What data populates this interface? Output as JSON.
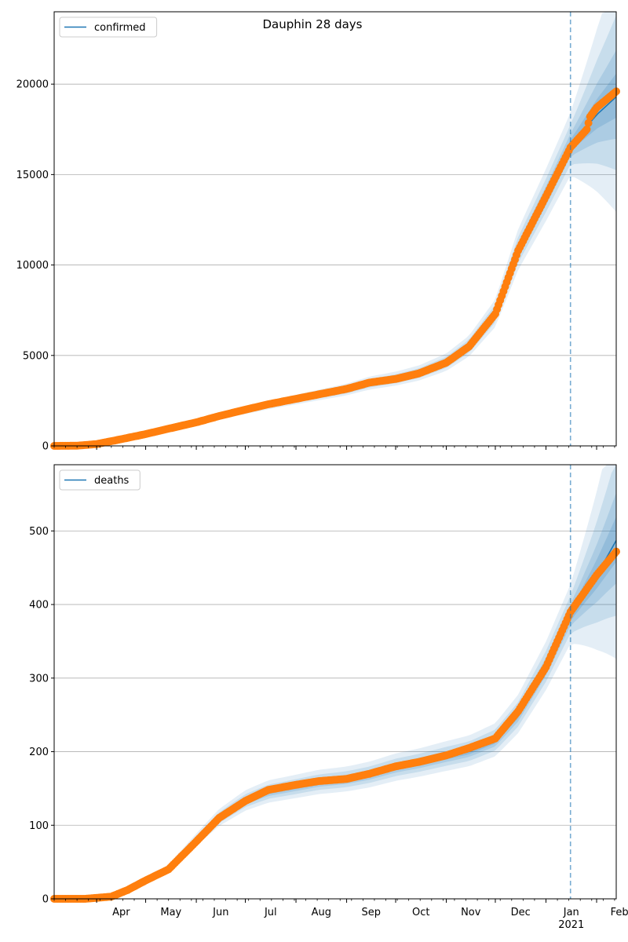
{
  "title": "Dauphin 28 days",
  "x_ticks": [
    "Apr",
    "May",
    "Jun",
    "Jul",
    "Aug",
    "Sep",
    "Oct",
    "Nov",
    "Dec",
    "Jan",
    "Feb"
  ],
  "x_year_label": "2021",
  "colors": {
    "model_line": "#1f77b4",
    "observed": "#ff7f0e",
    "band": "#1f77b4",
    "grid": "#b0b0b0",
    "forecast_line": "#1f77b4"
  },
  "chart_data": [
    {
      "type": "line",
      "legend": [
        "confirmed"
      ],
      "legend_position": "top-left",
      "grid": "horizontal",
      "xlim": [
        "2020-03-06",
        "2021-02-13"
      ],
      "ylim": [
        0,
        24000
      ],
      "y_ticks": [
        "0",
        "5000",
        "10000",
        "15000",
        "20000"
      ],
      "y_tick_values": [
        0,
        5000,
        10000,
        15000,
        20000
      ],
      "forecast_start": "2021-01-16",
      "series": [
        {
          "name": "confirmed",
          "style": "line",
          "x": [
            "2020-03-06",
            "2020-03-20",
            "2020-04-01",
            "2020-04-15",
            "2020-05-01",
            "2020-05-15",
            "2020-06-01",
            "2020-06-15",
            "2020-07-01",
            "2020-07-15",
            "2020-08-01",
            "2020-08-15",
            "2020-09-01",
            "2020-09-15",
            "2020-10-01",
            "2020-10-15",
            "2020-11-01",
            "2020-11-15",
            "2020-12-01",
            "2020-12-15",
            "2021-01-01",
            "2021-01-16",
            "2021-02-01",
            "2021-02-13"
          ],
          "y": [
            0,
            10,
            100,
            350,
            650,
            950,
            1300,
            1650,
            1950,
            2250,
            2550,
            2800,
            3100,
            3450,
            3700,
            4000,
            4600,
            5500,
            7300,
            10800,
            13800,
            16600,
            18300,
            19300
          ]
        },
        {
          "name": "observed",
          "style": "markers",
          "x": [
            "2020-03-06",
            "2020-03-20",
            "2020-04-01",
            "2020-04-15",
            "2020-05-01",
            "2020-05-15",
            "2020-06-01",
            "2020-06-15",
            "2020-07-01",
            "2020-07-15",
            "2020-08-01",
            "2020-08-15",
            "2020-09-01",
            "2020-09-15",
            "2020-10-01",
            "2020-10-15",
            "2020-11-01",
            "2020-11-15",
            "2020-12-01",
            "2020-12-15",
            "2021-01-01",
            "2021-01-16",
            "2021-01-26",
            "2021-01-28",
            "2021-02-01",
            "2021-02-13"
          ],
          "y": [
            0,
            10,
            100,
            350,
            650,
            950,
            1300,
            1650,
            2000,
            2300,
            2600,
            2850,
            3150,
            3500,
            3700,
            4000,
            4600,
            5500,
            7300,
            10800,
            13800,
            16500,
            17500,
            18200,
            18700,
            19600
          ]
        }
      ]
    },
    {
      "type": "line",
      "legend": [
        "deaths"
      ],
      "legend_position": "top-left",
      "grid": "horizontal",
      "xlim": [
        "2020-03-06",
        "2021-02-13"
      ],
      "ylim": [
        0,
        590
      ],
      "y_ticks": [
        "0",
        "100",
        "200",
        "300",
        "400",
        "500"
      ],
      "y_tick_values": [
        0,
        100,
        200,
        300,
        400,
        500
      ],
      "forecast_start": "2021-01-16",
      "series": [
        {
          "name": "deaths",
          "style": "line",
          "x": [
            "2020-03-06",
            "2020-03-25",
            "2020-04-10",
            "2020-04-20",
            "2020-05-01",
            "2020-05-15",
            "2020-06-01",
            "2020-06-15",
            "2020-07-01",
            "2020-07-15",
            "2020-08-01",
            "2020-08-15",
            "2020-09-01",
            "2020-09-15",
            "2020-10-01",
            "2020-10-15",
            "2020-11-01",
            "2020-11-15",
            "2020-12-01",
            "2020-12-15",
            "2021-01-01",
            "2021-01-16",
            "2021-02-01",
            "2021-02-13"
          ],
          "y": [
            0,
            0,
            3,
            10,
            25,
            42,
            80,
            110,
            133,
            145,
            152,
            158,
            162,
            168,
            178,
            184,
            193,
            200,
            215,
            250,
            315,
            385,
            440,
            487
          ]
        },
        {
          "name": "observed",
          "style": "markers",
          "x": [
            "2020-03-06",
            "2020-03-25",
            "2020-04-10",
            "2020-04-20",
            "2020-05-01",
            "2020-05-15",
            "2020-06-01",
            "2020-06-15",
            "2020-07-01",
            "2020-07-15",
            "2020-08-01",
            "2020-08-15",
            "2020-09-01",
            "2020-09-15",
            "2020-10-01",
            "2020-10-15",
            "2020-11-01",
            "2020-11-15",
            "2020-12-01",
            "2020-12-15",
            "2021-01-01",
            "2021-01-16",
            "2021-02-01",
            "2021-02-13"
          ],
          "y": [
            0,
            0,
            3,
            12,
            25,
            40,
            78,
            110,
            133,
            148,
            155,
            160,
            163,
            170,
            180,
            186,
            195,
            205,
            218,
            255,
            315,
            390,
            440,
            472
          ]
        }
      ]
    }
  ]
}
